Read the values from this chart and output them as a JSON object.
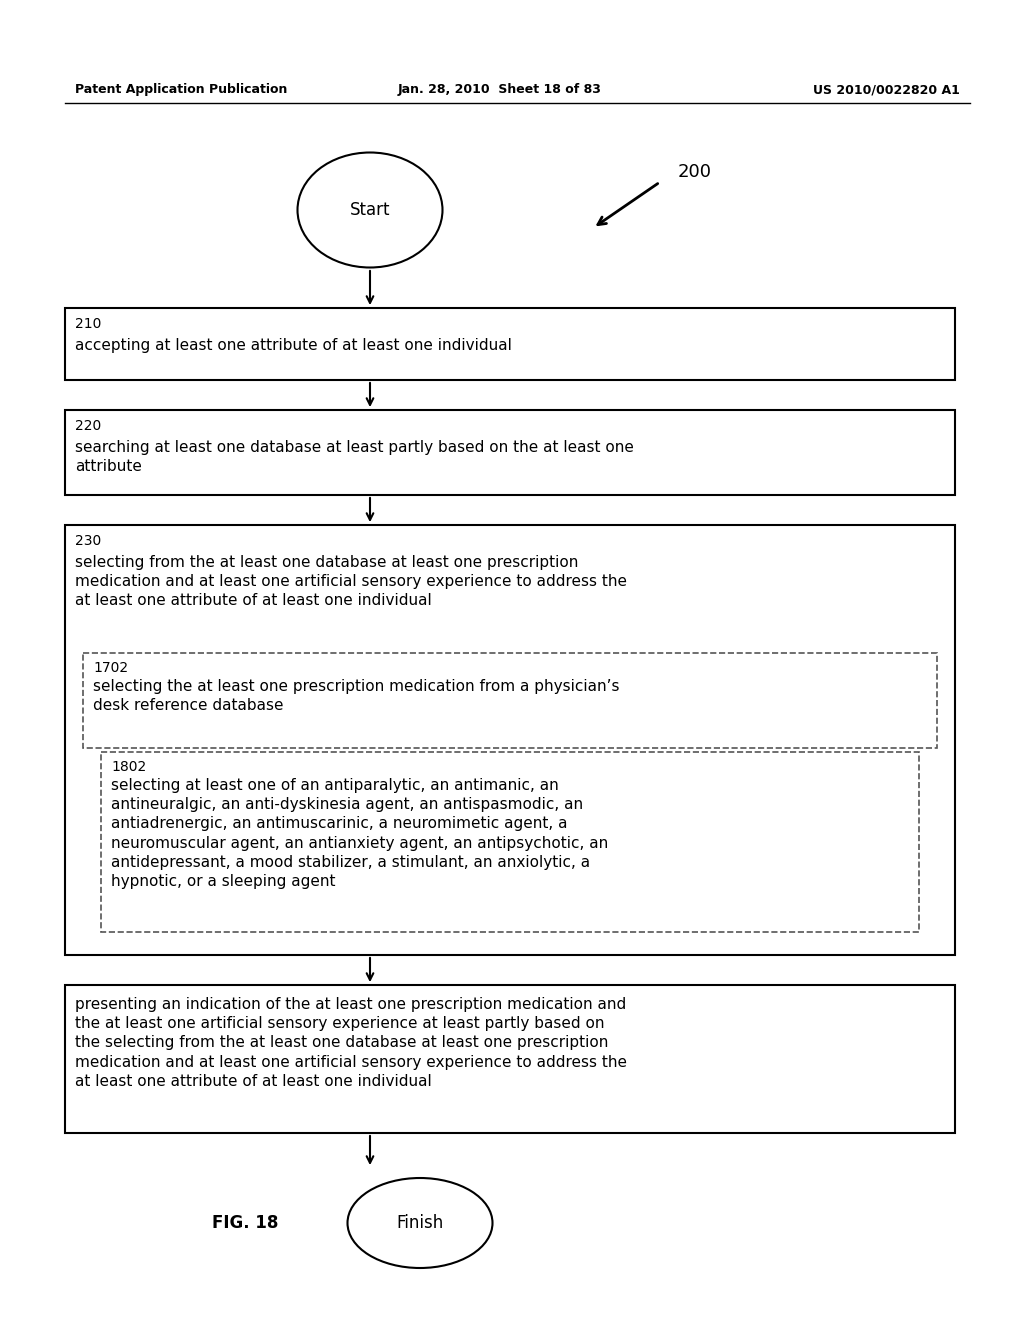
{
  "header_left": "Patent Application Publication",
  "header_center": "Jan. 28, 2010  Sheet 18 of 83",
  "header_right": "US 2010/0022820 A1",
  "fig_label": "FIG. 18",
  "diagram_label": "200",
  "start_label": "Start",
  "finish_label": "Finish",
  "box210_id": "210",
  "box210_text": "accepting at least one attribute of at least one individual",
  "box220_id": "220",
  "box220_text": "searching at least one database at least partly based on the at least one\nattribute",
  "box230_id": "230",
  "box230_text": "selecting from the at least one database at least one prescription\nmedication and at least one artificial sensory experience to address the\nat least one attribute of at least one individual",
  "box1702_id": "1702",
  "box1702_text": "selecting the at least one prescription medication from a physician’s\ndesk reference database",
  "box1802_id": "1802",
  "box1802_text": "selecting at least one of an antiparalytic, an antimanic, an\nantineuralgic, an anti-dyskinesia agent, an antispasmodic, an\nantiadrenergic, an antimuscarinic, a neuromimetic agent, a\nneuromuscular agent, an antianxiety agent, an antipsychotic, an\nantidepressant, a mood stabilizer, a stimulant, an anxiolytic, a\nhypnotic, or a sleeping agent",
  "box_present_text": "presenting an indication of the at least one prescription medication and\nthe at least one artificial sensory experience at least partly based on\nthe selecting from the at least one database at least one prescription\nmedication and at least one artificial sensory experience to address the\nat least one attribute of at least one individual",
  "bg_color": "#ffffff",
  "text_color": "#000000",
  "box_edge_color": "#000000",
  "dashed_edge_color": "#555555"
}
